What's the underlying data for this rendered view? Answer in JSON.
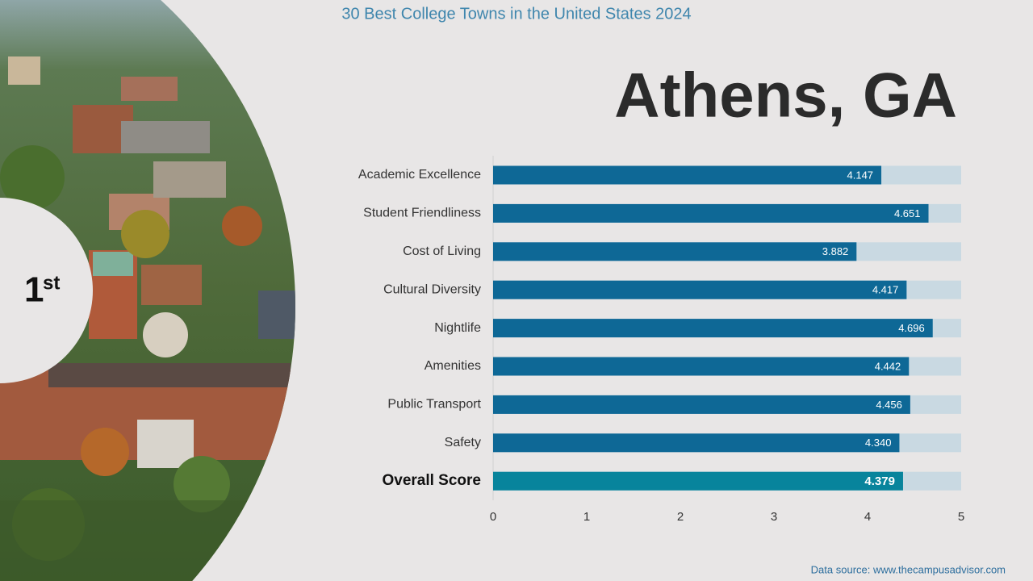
{
  "chart_data": {
    "type": "bar",
    "orientation": "horizontal",
    "title": "30 Best College Towns in the United States 2024",
    "subtitle": "Athens, GA",
    "rank": "1",
    "rank_suffix": "st",
    "source": "Data source: www.thecampusadvisor.com",
    "categories": [
      "Academic Excellence",
      "Student Friendliness",
      "Cost of Living",
      "Cultural Diversity",
      "Nightlife",
      "Amenities",
      "Public Transport",
      "Safety",
      "Overall Score"
    ],
    "values": [
      4.147,
      4.651,
      3.882,
      4.417,
      4.696,
      4.442,
      4.456,
      4.34,
      4.379
    ],
    "value_labels": [
      "4.147",
      "4.651",
      "3.882",
      "4.417",
      "4.696",
      "4.442",
      "4.456",
      "4.340",
      "4.379"
    ],
    "colors": [
      "#0e6896",
      "#0e6896",
      "#0e6896",
      "#0e6896",
      "#0e6896",
      "#0e6896",
      "#0e6896",
      "#0e6896",
      "#08849c"
    ],
    "track_color": "#c9d9e2",
    "xlim": [
      0,
      5
    ],
    "xticks": [
      0,
      1,
      2,
      3,
      4,
      5
    ]
  }
}
